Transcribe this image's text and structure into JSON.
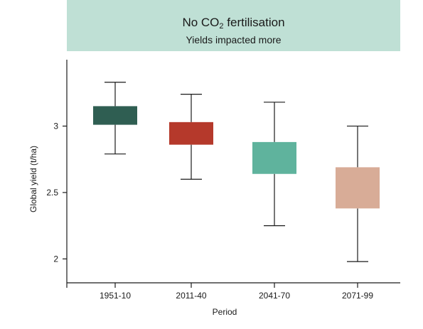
{
  "chart_data": {
    "type": "box",
    "title_prefix": "No CO",
    "title_subscript": "2",
    "title_suffix": " fertilisation",
    "subtitle": "Yields impacted more",
    "xlabel": "Period",
    "ylabel": "Global yield (t/ha)",
    "ylim": [
      1.82,
      3.5
    ],
    "yticks": [
      2,
      2.5,
      3
    ],
    "ytick_labels": [
      "2",
      "2.5",
      "3"
    ],
    "grid": false,
    "categories": [
      "1951-10",
      "2011-40",
      "2041-70",
      "2071-99"
    ],
    "boxes": [
      {
        "category": "1951-10",
        "whisker_low": 2.79,
        "q1": 3.01,
        "q3": 3.15,
        "whisker_high": 3.33,
        "color": "#2f5e52"
      },
      {
        "category": "2011-40",
        "whisker_low": 2.6,
        "q1": 2.86,
        "q3": 3.03,
        "whisker_high": 3.24,
        "color": "#b5392b"
      },
      {
        "category": "2041-70",
        "whisker_low": 2.25,
        "q1": 2.64,
        "q3": 2.88,
        "whisker_high": 3.18,
        "color": "#5fb39d"
      },
      {
        "category": "2071-99",
        "whisker_low": 1.98,
        "q1": 2.38,
        "q3": 2.69,
        "whisker_high": 3.0,
        "color": "#d8ac97"
      }
    ]
  }
}
